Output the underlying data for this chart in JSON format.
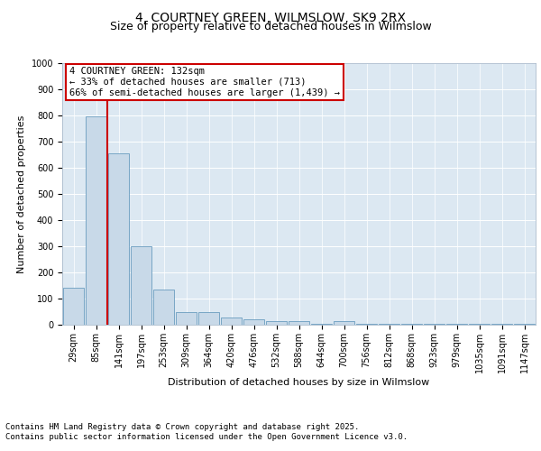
{
  "title_line1": "4, COURTNEY GREEN, WILMSLOW, SK9 2RX",
  "title_line2": "Size of property relative to detached houses in Wilmslow",
  "xlabel": "Distribution of detached houses by size in Wilmslow",
  "ylabel": "Number of detached properties",
  "bar_labels": [
    "29sqm",
    "85sqm",
    "141sqm",
    "197sqm",
    "253sqm",
    "309sqm",
    "364sqm",
    "420sqm",
    "476sqm",
    "532sqm",
    "588sqm",
    "644sqm",
    "700sqm",
    "756sqm",
    "812sqm",
    "868sqm",
    "923sqm",
    "979sqm",
    "1035sqm",
    "1091sqm",
    "1147sqm"
  ],
  "bar_values": [
    140,
    795,
    655,
    300,
    135,
    50,
    50,
    28,
    20,
    15,
    15,
    5,
    15,
    5,
    2,
    2,
    2,
    2,
    2,
    2,
    5
  ],
  "bar_color": "#c8d9e8",
  "bar_edge_color": "#6a9cbf",
  "vline_color": "#cc0000",
  "annotation_text": "4 COURTNEY GREEN: 132sqm\n← 33% of detached houses are smaller (713)\n66% of semi-detached houses are larger (1,439) →",
  "annotation_box_color": "#cc0000",
  "ylim": [
    0,
    1000
  ],
  "yticks": [
    0,
    100,
    200,
    300,
    400,
    500,
    600,
    700,
    800,
    900,
    1000
  ],
  "bg_color": "#ffffff",
  "plot_bg_color": "#dce8f2",
  "footer_line1": "Contains HM Land Registry data © Crown copyright and database right 2025.",
  "footer_line2": "Contains public sector information licensed under the Open Government Licence v3.0.",
  "title_fontsize": 10,
  "subtitle_fontsize": 9,
  "axis_label_fontsize": 8,
  "tick_fontsize": 7,
  "annotation_fontsize": 7.5,
  "footer_fontsize": 6.5
}
